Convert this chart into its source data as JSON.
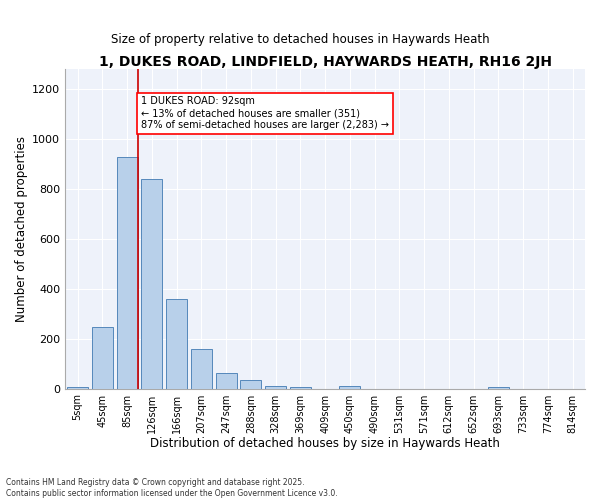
{
  "title": "1, DUKES ROAD, LINDFIELD, HAYWARDS HEATH, RH16 2JH",
  "subtitle": "Size of property relative to detached houses in Haywards Heath",
  "xlabel": "Distribution of detached houses by size in Haywards Heath",
  "ylabel": "Number of detached properties",
  "bar_labels": [
    "5sqm",
    "45sqm",
    "85sqm",
    "126sqm",
    "166sqm",
    "207sqm",
    "247sqm",
    "288sqm",
    "328sqm",
    "369sqm",
    "409sqm",
    "450sqm",
    "490sqm",
    "531sqm",
    "571sqm",
    "612sqm",
    "652sqm",
    "693sqm",
    "733sqm",
    "774sqm",
    "814sqm"
  ],
  "bar_values": [
    8,
    248,
    928,
    840,
    360,
    157,
    62,
    33,
    12,
    8,
    0,
    10,
    0,
    0,
    0,
    0,
    0,
    8,
    0,
    0,
    0
  ],
  "bar_color": "#b8d0ea",
  "bar_edge_color": "#5588bb",
  "vline_color": "#cc0000",
  "ylim": [
    0,
    1280
  ],
  "yticks": [
    0,
    200,
    400,
    600,
    800,
    1000,
    1200
  ],
  "annotation_line1": "1 DUKES ROAD: 92sqm",
  "annotation_line2": "← 13% of detached houses are smaller (351)",
  "annotation_line3": "87% of semi-detached houses are larger (2,283) →",
  "bg_color": "#eef2fa",
  "footer": "Contains HM Land Registry data © Crown copyright and database right 2025.\nContains public sector information licensed under the Open Government Licence v3.0."
}
